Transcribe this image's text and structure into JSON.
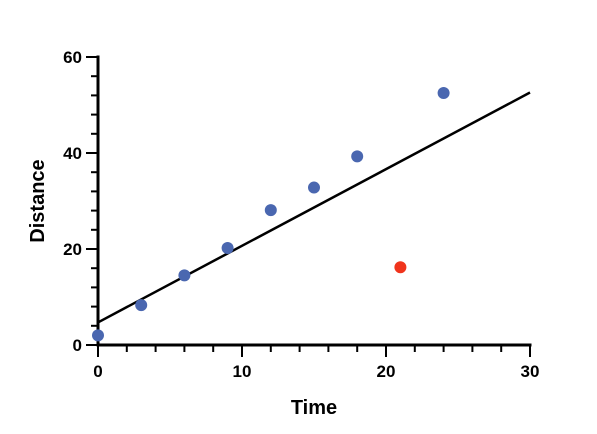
{
  "chart_data": {
    "type": "scatter",
    "xlabel": "Time",
    "ylabel": "Distance",
    "xlim": [
      0,
      30
    ],
    "ylim": [
      0,
      60
    ],
    "x_ticks": [
      0,
      10,
      20,
      30
    ],
    "y_ticks": [
      0,
      20,
      40,
      60
    ],
    "grid": false,
    "legend": "none",
    "series": [
      {
        "points": [
          {
            "x": 0,
            "y": 2
          },
          {
            "x": 3,
            "y": 8.3
          },
          {
            "x": 6,
            "y": 14.5
          },
          {
            "x": 9,
            "y": 20.2
          },
          {
            "x": 12,
            "y": 28.1
          },
          {
            "x": 15,
            "y": 32.8
          },
          {
            "x": 18,
            "y": 39.3
          },
          {
            "x": 24,
            "y": 52.5
          }
        ],
        "color": "#4a67b0"
      },
      {
        "points": [
          {
            "x": 21,
            "y": 16.2
          }
        ],
        "color": "#f0341c"
      }
    ],
    "fit_line": {
      "type": "linear",
      "from": {
        "x": 0,
        "y": 4.7
      },
      "to": {
        "x": 30,
        "y": 52.6
      },
      "color": "#000000"
    }
  }
}
